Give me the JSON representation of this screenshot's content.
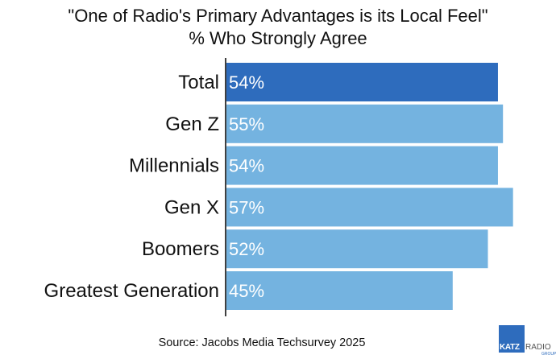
{
  "chart_data": {
    "type": "bar",
    "orientation": "horizontal",
    "title": "\"One of Radio's Primary Advantages is its Local Feel\"",
    "subtitle": "% Who Strongly Agree",
    "categories": [
      "Total",
      "Gen Z",
      "Millennials",
      "Gen X",
      "Boomers",
      "Greatest Generation"
    ],
    "values": [
      54,
      55,
      54,
      57,
      52,
      45
    ],
    "data_labels": [
      "54%",
      "55%",
      "54%",
      "57%",
      "52%",
      "45%"
    ],
    "xlim": [
      0,
      60
    ],
    "grid": false,
    "legend": "none",
    "colors": {
      "highlight": "#2e6cbd",
      "default": "#74b3e0"
    }
  },
  "source": "Source: Jacobs Media Techsurvey 2025",
  "logo": {
    "katz": "KATZ",
    "radio": "RADIO",
    "group": "GROUP"
  }
}
